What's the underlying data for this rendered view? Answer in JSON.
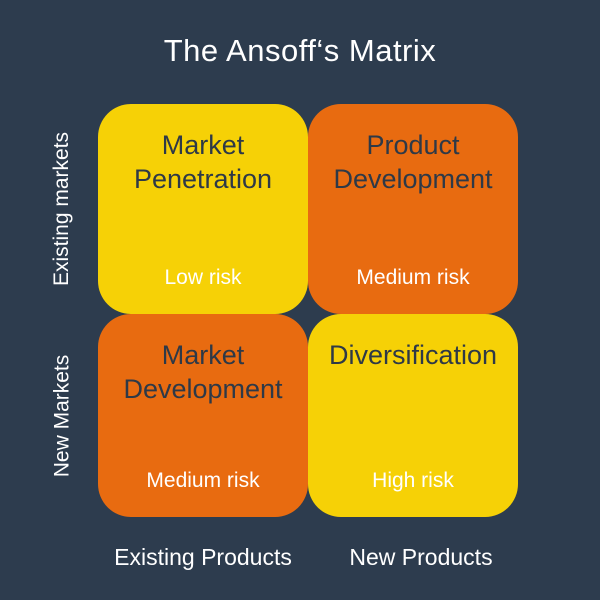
{
  "title": "The Ansoff‘s Matrix",
  "colors": {
    "background": "#2d3c4e",
    "yellow": "#f6d106",
    "orange": "#e86b10",
    "dark_text": "#2e3947",
    "light_text": "#ffffff"
  },
  "axes": {
    "row_top": "Existing markets",
    "row_bottom": "New Markets",
    "col_left": "Existing Products",
    "col_right": "New Products"
  },
  "quadrants": [
    {
      "title": "Market Penetration",
      "risk": "Low risk",
      "color": "yellow"
    },
    {
      "title": "Product Development",
      "risk": "Medium risk",
      "color": "orange"
    },
    {
      "title": "Market Development",
      "risk": "Medium risk",
      "color": "orange"
    },
    {
      "title": "Diversification",
      "risk": "High risk",
      "color": "yellow"
    }
  ]
}
